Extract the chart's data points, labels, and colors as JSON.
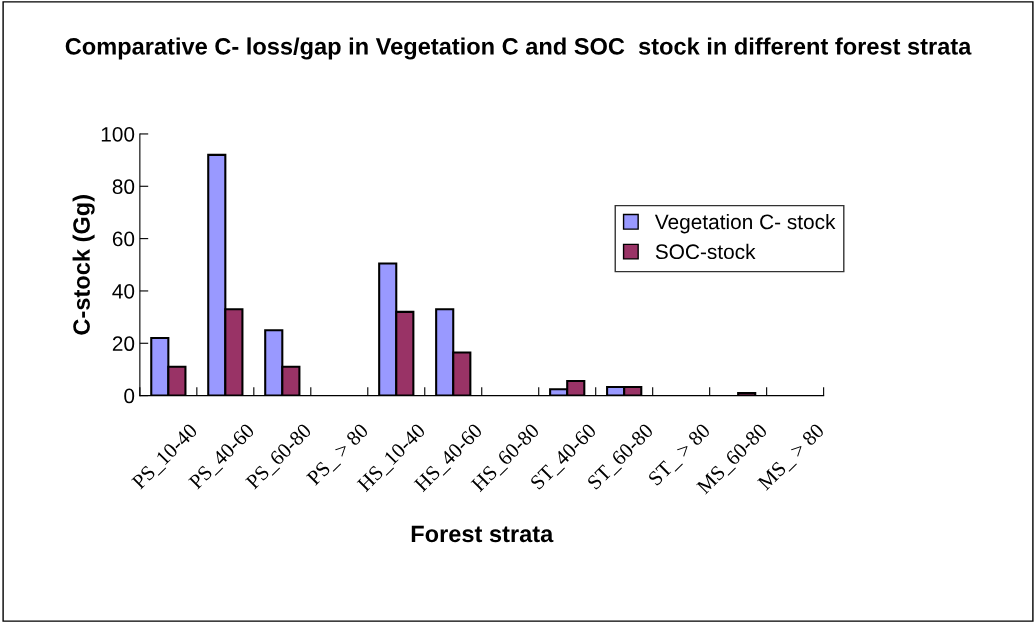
{
  "chart_data": {
    "type": "bar",
    "title": "Comparative C- loss/gap in Vegetation C and SOC  stock in different forest strata",
    "xlabel": "Forest strata",
    "ylabel": "C-stock (Gg)",
    "categories": [
      "PS_10-40",
      "PS_40-60",
      "PS_60-80",
      "PS_ > 80",
      "HS_10-40",
      "HS_40-60",
      "HS_60-80",
      "ST_40-60",
      "ST_60-80",
      "ST_ > 80",
      "MS_60-80",
      "MS_ > 80"
    ],
    "series": [
      {
        "name": "Vegetation C- stock",
        "color": "#9999ff",
        "values": [
          22,
          92,
          25,
          null,
          50.5,
          33,
          null,
          2.4,
          3.3,
          null,
          null,
          null
        ]
      },
      {
        "name": "SOC-stock",
        "color": "#993366",
        "values": [
          11,
          33,
          11,
          null,
          32,
          16.5,
          null,
          5.6,
          3.3,
          null,
          1,
          null
        ]
      }
    ],
    "ylim": [
      0,
      100
    ],
    "yticks": [
      0,
      20,
      40,
      60,
      80,
      100
    ],
    "grid": false,
    "legend": "right"
  }
}
